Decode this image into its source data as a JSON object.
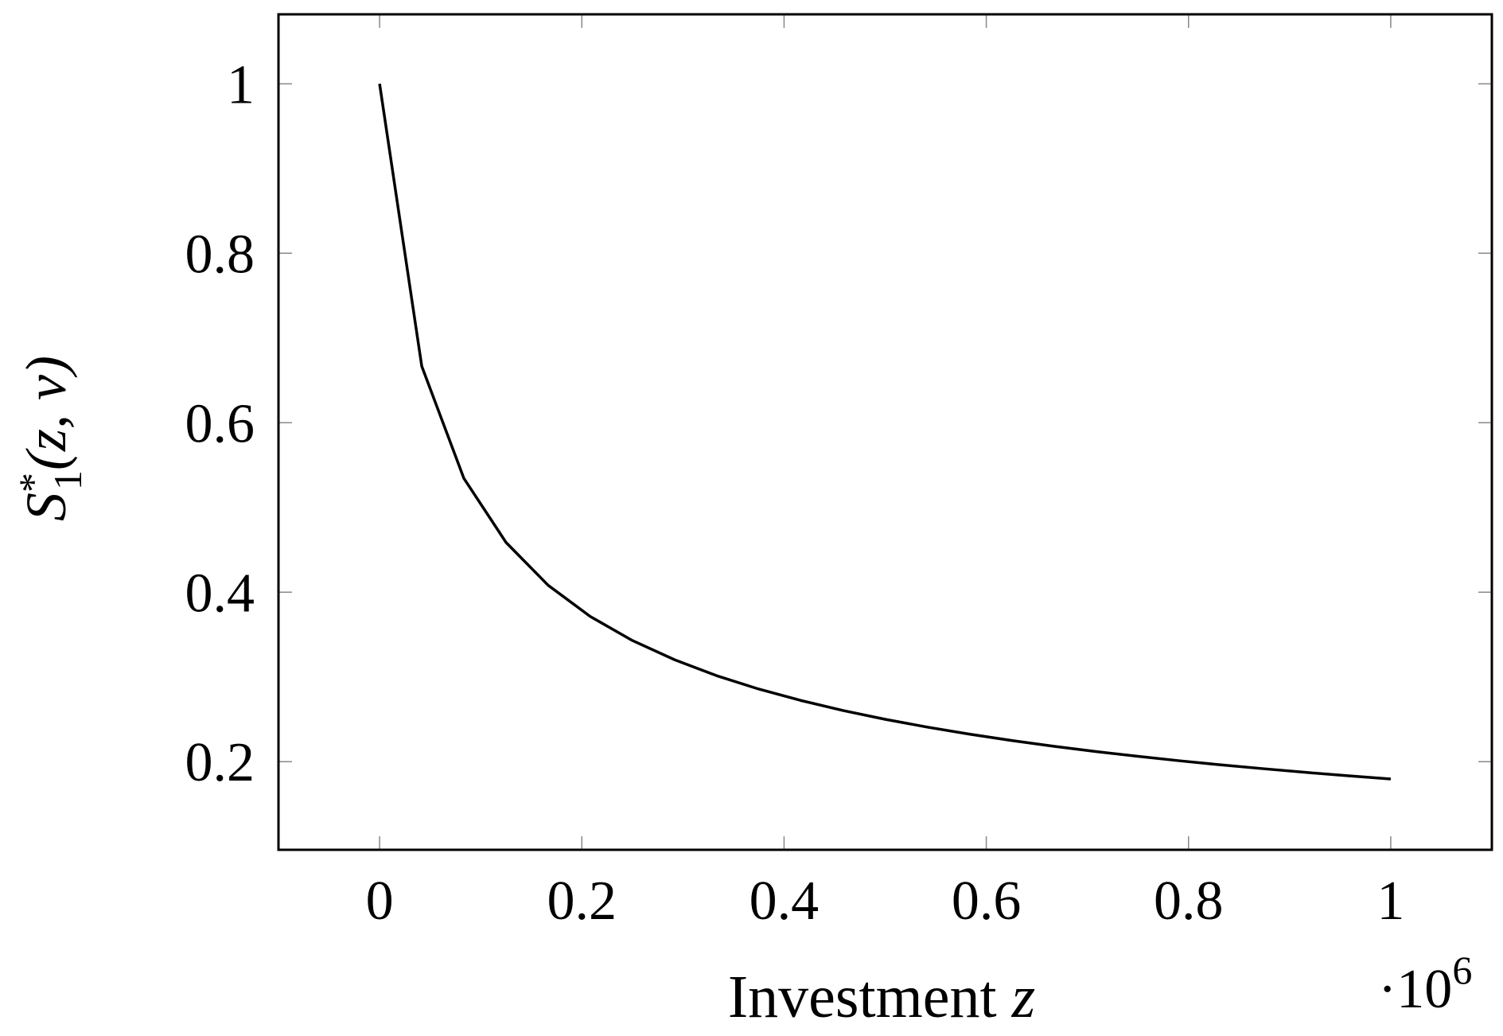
{
  "chart_data": {
    "type": "line",
    "xlabel": {
      "text": "Investment",
      "var": "z"
    },
    "ylabel": {
      "main": "S",
      "sup": "*",
      "sub": "1",
      "args": "(z, v)"
    },
    "x_multiplier": {
      "base": "·10",
      "exponent": "6"
    },
    "xlim": [
      -0.1,
      1.1
    ],
    "ylim": [
      0.096,
      1.082
    ],
    "xticks": [
      0,
      0.2,
      0.4,
      0.6,
      0.8,
      1
    ],
    "yticks": [
      0.2,
      0.4,
      0.6,
      0.8,
      1
    ],
    "x": [
      0,
      0.0417,
      0.0833,
      0.125,
      0.1667,
      0.2083,
      0.25,
      0.2917,
      0.3333,
      0.375,
      0.4167,
      0.4583,
      0.5,
      0.5417,
      0.5833,
      0.625,
      0.6667,
      0.7083,
      0.75,
      0.7917,
      0.8333,
      0.875,
      0.9167,
      0.9583,
      1
    ],
    "series": [
      {
        "color": "#000000",
        "values": [
          1,
          0.6667,
          0.5345,
          0.4588,
          0.4082,
          0.3714,
          0.343,
          0.3203,
          0.3015,
          0.2857,
          0.2722,
          0.2604,
          0.25,
          0.2408,
          0.2325,
          0.225,
          0.2182,
          0.212,
          0.2063,
          0.201,
          0.1961,
          0.1916,
          0.1873,
          0.1833,
          0.1796
        ]
      }
    ]
  }
}
